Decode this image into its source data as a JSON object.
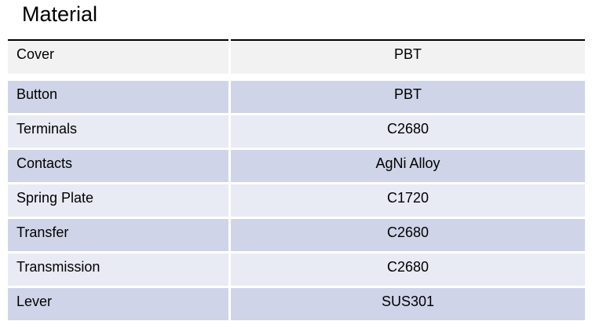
{
  "page": {
    "title": "Material"
  },
  "table": {
    "rows": [
      {
        "label": "Cover",
        "value": "PBT",
        "band": "gray"
      },
      {
        "label": "Button",
        "value": "PBT",
        "band": "dark"
      },
      {
        "label": "Terminals",
        "value": "C2680",
        "band": "light"
      },
      {
        "label": "Contacts",
        "value": "AgNi Alloy",
        "band": "dark"
      },
      {
        "label": "Spring Plate",
        "value": "C1720",
        "band": "light"
      },
      {
        "label": "Transfer",
        "value": "C2680",
        "band": "dark"
      },
      {
        "label": "Transmission",
        "value": "C2680",
        "band": "light"
      },
      {
        "label": "Lever",
        "value": "SUS301",
        "band": "dark"
      }
    ],
    "band_colors": {
      "gray": "#f2f2f2",
      "dark": "#cfd4e8",
      "light": "#e8eaf4"
    },
    "border_color": "#000000",
    "divider_color": "#ffffff",
    "text_color": "#000000"
  }
}
